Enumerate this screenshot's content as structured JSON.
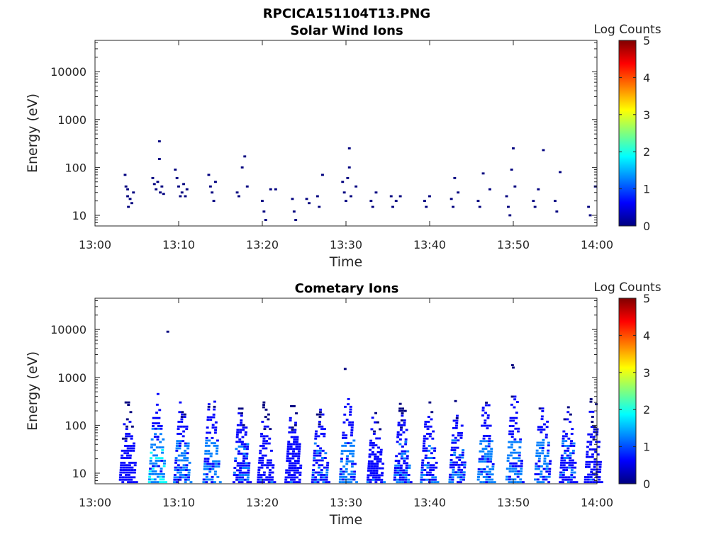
{
  "figure_title": "RPCICA151104T13.PNG",
  "colormap": [
    "#00007f",
    "#0000ff",
    "#007fff",
    "#00ffff",
    "#7fff7f",
    "#ffff00",
    "#ff7f00",
    "#ff0000",
    "#7f0000"
  ],
  "chart_data": [
    {
      "type": "heatmap",
      "title": "Solar Wind Ions",
      "xlabel": "Time",
      "ylabel": "Energy (eV)",
      "x_ticks": [
        "13:00",
        "13:10",
        "13:20",
        "13:30",
        "13:40",
        "13:50",
        "14:00"
      ],
      "x_range_minutes": [
        0,
        60
      ],
      "y_scale": "log",
      "y_ticks": [
        "10",
        "100",
        "1000",
        "10000"
      ],
      "ylim": [
        6,
        45000
      ],
      "colorbar": {
        "label": "Log Counts",
        "range": [
          0,
          5
        ],
        "ticks": [
          "0",
          "1",
          "2",
          "3",
          "4",
          "5"
        ]
      },
      "cells": [
        [
          3.6,
          70,
          0.1
        ],
        [
          3.7,
          40,
          0.1
        ],
        [
          3.9,
          35,
          0.1
        ],
        [
          3.9,
          25,
          0.1
        ],
        [
          4.0,
          15,
          0.1
        ],
        [
          4.2,
          22,
          0.1
        ],
        [
          4.4,
          18,
          0.1
        ],
        [
          4.6,
          30,
          0.1
        ],
        [
          6.9,
          60,
          0.1
        ],
        [
          7.1,
          45,
          0.2
        ],
        [
          7.3,
          35,
          0.2
        ],
        [
          7.5,
          50,
          0.2
        ],
        [
          7.7,
          350,
          0.1
        ],
        [
          7.7,
          150,
          0.1
        ],
        [
          7.8,
          30,
          0.2
        ],
        [
          8.0,
          40,
          0.2
        ],
        [
          8.2,
          28,
          0.1
        ],
        [
          9.6,
          90,
          0.1
        ],
        [
          9.8,
          60,
          0.1
        ],
        [
          10.0,
          40,
          0.2
        ],
        [
          10.2,
          25,
          0.2
        ],
        [
          10.4,
          30,
          0.2
        ],
        [
          10.6,
          45,
          0.2
        ],
        [
          10.8,
          25,
          0.2
        ],
        [
          11.0,
          35,
          0.2
        ],
        [
          13.6,
          70,
          0.1
        ],
        [
          13.8,
          40,
          0.2
        ],
        [
          14.0,
          30,
          0.2
        ],
        [
          14.2,
          20,
          0.2
        ],
        [
          14.4,
          50,
          0.1
        ],
        [
          17.0,
          30,
          0.1
        ],
        [
          17.2,
          25,
          0.1
        ],
        [
          17.6,
          100,
          0.1
        ],
        [
          17.9,
          170,
          0.1
        ],
        [
          18.2,
          40,
          0.1
        ],
        [
          20.0,
          20,
          0.2
        ],
        [
          20.2,
          12,
          0.2
        ],
        [
          20.4,
          8,
          0.2
        ],
        [
          21.0,
          35,
          0.1
        ],
        [
          21.6,
          35,
          0.1
        ],
        [
          23.6,
          22,
          0.1
        ],
        [
          23.8,
          12,
          0.1
        ],
        [
          24.0,
          8,
          0.1
        ],
        [
          25.3,
          22,
          0.1
        ],
        [
          25.6,
          18,
          0.1
        ],
        [
          26.6,
          25,
          0.1
        ],
        [
          26.8,
          15,
          0.2
        ],
        [
          27.2,
          70,
          0.1
        ],
        [
          29.6,
          50,
          0.1
        ],
        [
          29.8,
          30,
          0.2
        ],
        [
          30.0,
          20,
          0.2
        ],
        [
          30.2,
          60,
          0.2
        ],
        [
          30.4,
          250,
          0.1
        ],
        [
          30.4,
          100,
          0.1
        ],
        [
          30.6,
          25,
          0.2
        ],
        [
          31.2,
          40,
          0.1
        ],
        [
          33.0,
          20,
          0.1
        ],
        [
          33.2,
          15,
          0.1
        ],
        [
          33.6,
          30,
          0.1
        ],
        [
          35.4,
          25,
          0.2
        ],
        [
          35.6,
          15,
          0.1
        ],
        [
          36.0,
          20,
          0.1
        ],
        [
          36.5,
          25,
          0.1
        ],
        [
          39.4,
          20,
          0.1
        ],
        [
          39.6,
          15,
          0.1
        ],
        [
          40.0,
          25,
          0.1
        ],
        [
          42.6,
          22,
          0.2
        ],
        [
          42.8,
          15,
          0.2
        ],
        [
          43.0,
          60,
          0.1
        ],
        [
          43.4,
          30,
          0.1
        ],
        [
          45.8,
          20,
          0.1
        ],
        [
          46.0,
          15,
          0.1
        ],
        [
          46.4,
          75,
          0.1
        ],
        [
          47.2,
          35,
          0.1
        ],
        [
          49.2,
          25,
          0.1
        ],
        [
          49.4,
          15,
          0.2
        ],
        [
          49.6,
          10,
          0.2
        ],
        [
          49.8,
          90,
          0.1
        ],
        [
          50.0,
          250,
          0.1
        ],
        [
          50.2,
          40,
          0.1
        ],
        [
          52.4,
          20,
          0.1
        ],
        [
          52.6,
          15,
          0.2
        ],
        [
          53.0,
          35,
          0.1
        ],
        [
          53.6,
          230,
          0.1
        ],
        [
          55.0,
          20,
          0.1
        ],
        [
          55.2,
          12,
          0.1
        ],
        [
          55.6,
          80,
          0.1
        ],
        [
          59.0,
          15,
          0.2
        ],
        [
          59.2,
          10,
          0.1
        ],
        [
          59.8,
          40,
          0.1
        ]
      ]
    },
    {
      "type": "heatmap",
      "title": "Cometary Ions",
      "xlabel": "Time",
      "ylabel": "Energy (eV)",
      "x_ticks": [
        "13:00",
        "13:10",
        "13:20",
        "13:30",
        "13:40",
        "13:50",
        "14:00"
      ],
      "x_range_minutes": [
        0,
        60
      ],
      "y_scale": "log",
      "y_ticks": [
        "10",
        "100",
        "1000",
        "10000"
      ],
      "ylim": [
        6,
        45000
      ],
      "colorbar": {
        "label": "Log Counts",
        "range": [
          0,
          5
        ],
        "ticks": [
          "0",
          "1",
          "2",
          "3",
          "4",
          "5"
        ]
      },
      "bursts": [
        [
          4.0,
          300,
          0.8
        ],
        [
          7.5,
          450,
          1.9
        ],
        [
          10.5,
          300,
          1.5
        ],
        [
          14.0,
          400,
          1.6
        ],
        [
          17.6,
          280,
          1.2
        ],
        [
          20.5,
          300,
          1.0
        ],
        [
          23.8,
          280,
          1.0
        ],
        [
          27.0,
          300,
          1.2
        ],
        [
          30.3,
          400,
          1.6
        ],
        [
          33.6,
          250,
          1.0
        ],
        [
          36.8,
          280,
          1.2
        ],
        [
          40.0,
          300,
          1.3
        ],
        [
          43.4,
          320,
          1.3
        ],
        [
          46.8,
          380,
          1.5
        ],
        [
          50.2,
          450,
          1.6
        ],
        [
          53.6,
          420,
          1.4
        ],
        [
          56.6,
          300,
          1.2
        ],
        [
          59.6,
          350,
          1.0
        ]
      ],
      "isolated_points": [
        [
          8.7,
          9000,
          0.1
        ],
        [
          29.9,
          1500,
          0.1
        ],
        [
          50.0,
          1600,
          0.2
        ],
        [
          49.9,
          1800,
          0.1
        ]
      ]
    }
  ]
}
